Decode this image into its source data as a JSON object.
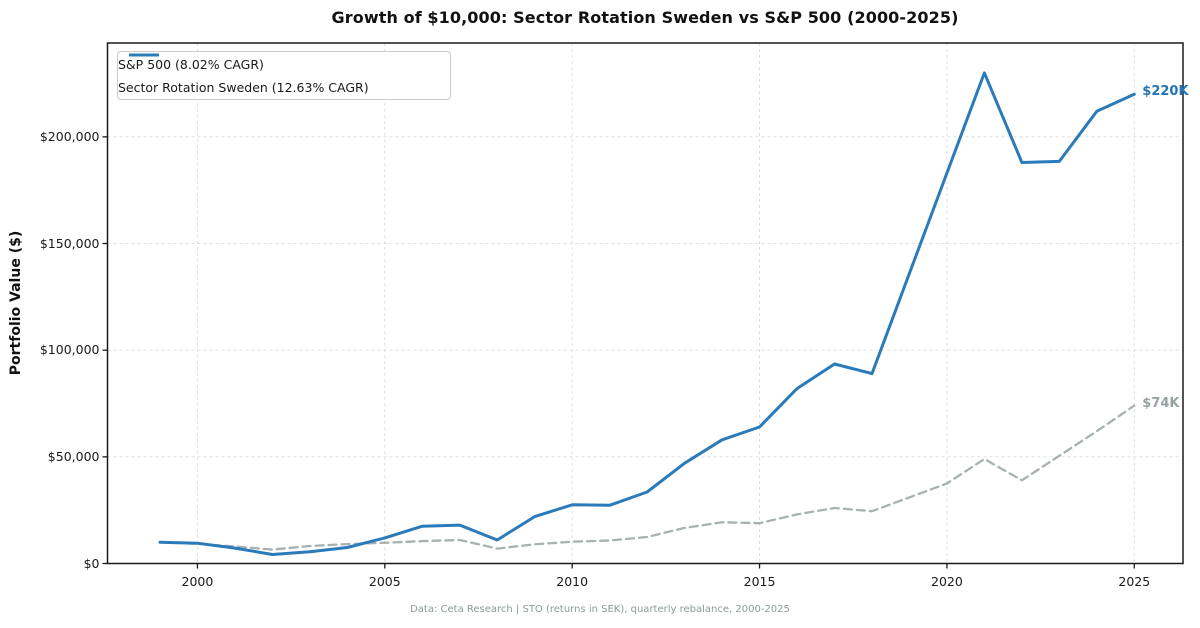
{
  "figure": {
    "title": "Growth of $10,000: Sector Rotation Sweden vs S&P 500 (2000-2025)",
    "footer": "Data: Ceta Research | STO (returns in SEK), quarterly rebalance, 2000-2025"
  },
  "colors": {
    "sp500_line": "#a7b2b1",
    "sp500_label": "#96a3a2",
    "sector_line": "#2b7bba",
    "sector_label": "#2474b5",
    "grid": "#dcdcdc",
    "spine": "#1a1a1a",
    "tick_text": "#1a1a1a",
    "footer_text": "#8d9a9a"
  },
  "chart_data": {
    "type": "line",
    "title": "Growth of $10,000: Sector Rotation Sweden vs S&P 500 (2000-2025)",
    "xlabel": "",
    "ylabel": "Portfolio Value ($)",
    "x": [
      1999,
      2000,
      2001,
      2002,
      2003,
      2004,
      2005,
      2006,
      2007,
      2008,
      2009,
      2010,
      2011,
      2012,
      2013,
      2014,
      2015,
      2016,
      2017,
      2018,
      2019,
      2020,
      2021,
      2022,
      2023,
      2024,
      2025
    ],
    "series": [
      {
        "id": "sp500",
        "name": "S&P 500 (8.02% CAGR)",
        "color": "#a7b2b1",
        "dash": "8 5",
        "width": 2.3,
        "values": [
          10000,
          9200,
          8000,
          6500,
          8200,
          9100,
          9700,
          10500,
          11000,
          7000,
          9000,
          10200,
          10800,
          12400,
          16700,
          19300,
          18900,
          23000,
          26000,
          24500,
          31000,
          37500,
          49000,
          39000,
          50500,
          62000,
          74000
        ],
        "end_label": "$74K",
        "end_label_color": "#96a3a2"
      },
      {
        "id": "sector-rotation-sweden",
        "name": "Sector Rotation Sweden (12.63% CAGR)",
        "color": "#2b7bba",
        "dash": "",
        "width": 3,
        "values": [
          10000,
          9500,
          7200,
          4200,
          5500,
          7500,
          12000,
          17500,
          18000,
          11000,
          22000,
          27500,
          27300,
          33500,
          47000,
          58000,
          64000,
          82000,
          93500,
          89000,
          136000,
          183000,
          230000,
          188000,
          188500,
          212000,
          220000
        ],
        "end_label": "$220K",
        "end_label_color": "#2474b5"
      }
    ],
    "xticks": {
      "values": [
        2000,
        2005,
        2010,
        2015,
        2020,
        2025
      ],
      "labels": [
        "2000",
        "2005",
        "2010",
        "2015",
        "2020",
        "2025"
      ]
    },
    "yticks": {
      "values": [
        0,
        50000,
        100000,
        150000,
        200000
      ],
      "labels": [
        "$0",
        "$50,000",
        "$100,000",
        "$150,000",
        "$200,000"
      ]
    },
    "xlim": [
      1997.6,
      2026.3
    ],
    "ylim": [
      0,
      244000
    ],
    "grid": true,
    "legend_position": "upper-left"
  }
}
